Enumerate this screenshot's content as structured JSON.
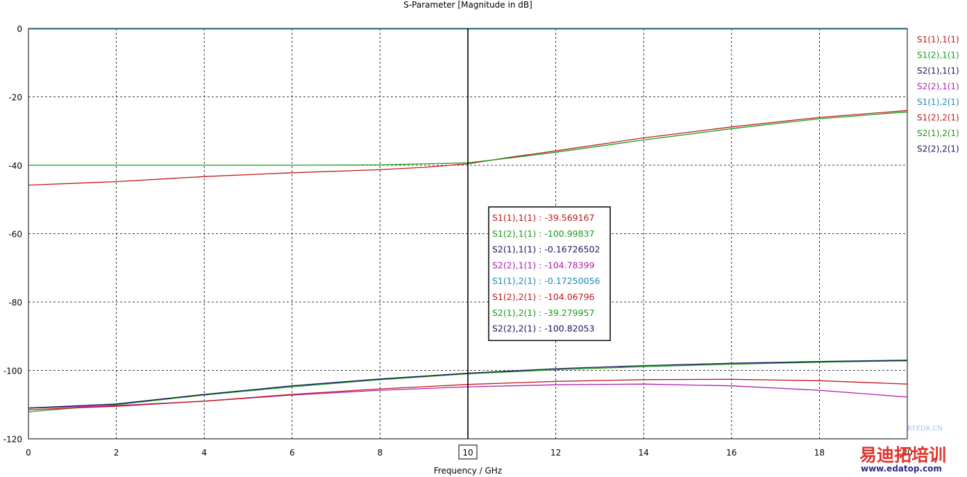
{
  "chart_data": {
    "type": "line",
    "title": "S-Parameter [Magnitude in dB]",
    "xlabel": "Frequency / GHz",
    "ylabel": "",
    "xlim": [
      0,
      20
    ],
    "ylim": [
      -120,
      0
    ],
    "x_ticks": [
      "0",
      "2",
      "4",
      "6",
      "8",
      "10",
      "12",
      "14",
      "16",
      "18",
      "20"
    ],
    "y_ticks": [
      "0",
      "-20",
      "-40",
      "-60",
      "-80",
      "-100",
      "-120"
    ],
    "grid": true,
    "legend_position": "right",
    "marker": {
      "x": 10,
      "label": "10",
      "readout": [
        {
          "name": "S1(1),1(1)",
          "value": "-39.569167",
          "color": "#c01818"
        },
        {
          "name": "S1(2),1(1)",
          "value": "-100.99837",
          "color": "#1a9a1a"
        },
        {
          "name": "S2(1),1(1)",
          "value": "-0.16726502",
          "color": "#161660"
        },
        {
          "name": "S2(2),1(1)",
          "value": "-104.78399",
          "color": "#b01cb0"
        },
        {
          "name": "S1(1),2(1)",
          "value": "-0.17250056",
          "color": "#1a8ab8"
        },
        {
          "name": "S1(2),2(1)",
          "value": "-104.06796",
          "color": "#c01818"
        },
        {
          "name": "S2(1),2(1)",
          "value": "-39.279957",
          "color": "#1a9a1a"
        },
        {
          "name": "S2(2),2(1)",
          "value": "-100.82053",
          "color": "#161660"
        }
      ]
    },
    "series": [
      {
        "name": "S1(1),1(1)",
        "color": "#c01818",
        "x": [
          0,
          2,
          4,
          6,
          8,
          9,
          10,
          11,
          12,
          14,
          16,
          18,
          20
        ],
        "y": [
          -45.8,
          -44.8,
          -43.3,
          -42.2,
          -41.3,
          -40.6,
          -39.57,
          -37.6,
          -35.8,
          -32.0,
          -28.8,
          -26.0,
          -24.0
        ]
      },
      {
        "name": "S1(2),1(1)",
        "color": "#1a9a1a",
        "x": [
          0,
          2,
          4,
          6,
          8,
          10,
          12,
          14,
          16,
          18,
          20
        ],
        "y": [
          -112.1,
          -110.0,
          -107.2,
          -104.8,
          -102.7,
          -101.0,
          -99.8,
          -98.9,
          -98.2,
          -97.6,
          -97.2
        ]
      },
      {
        "name": "S2(1),1(1)",
        "color": "#161660",
        "x": [
          0,
          2,
          4,
          6,
          8,
          10,
          12,
          14,
          16,
          18,
          20
        ],
        "y": [
          -0.17,
          -0.17,
          -0.17,
          -0.17,
          -0.17,
          -0.17,
          -0.17,
          -0.17,
          -0.17,
          -0.17,
          -0.17
        ]
      },
      {
        "name": "S2(2),1(1)",
        "color": "#b01cb0",
        "x": [
          0,
          2,
          4,
          6,
          8,
          10,
          12,
          14,
          16,
          18,
          20
        ],
        "y": [
          -111.0,
          -110.3,
          -109.0,
          -107.2,
          -105.8,
          -104.8,
          -104.2,
          -104.0,
          -104.5,
          -105.8,
          -107.8
        ]
      },
      {
        "name": "S1(1),2(1)",
        "color": "#1a8ab8",
        "x": [
          0,
          2,
          4,
          6,
          8,
          10,
          12,
          14,
          16,
          18,
          20
        ],
        "y": [
          -0.17,
          -0.17,
          -0.17,
          -0.17,
          -0.17,
          -0.17,
          -0.17,
          -0.17,
          -0.17,
          -0.17,
          -0.17
        ]
      },
      {
        "name": "S1(2),2(1)",
        "color": "#c01818",
        "x": [
          0,
          2,
          4,
          6,
          8,
          10,
          12,
          14,
          16,
          18,
          20
        ],
        "y": [
          -111.5,
          -110.5,
          -109.0,
          -107.0,
          -105.4,
          -104.1,
          -103.2,
          -102.7,
          -102.6,
          -103.0,
          -104.0
        ]
      },
      {
        "name": "S2(1),2(1)",
        "color": "#1a9a1a",
        "x": [
          0,
          2,
          4,
          6,
          8,
          10,
          11,
          12,
          14,
          16,
          18,
          20
        ],
        "y": [
          -40.0,
          -40.0,
          -40.0,
          -40.0,
          -39.9,
          -39.28,
          -37.8,
          -36.2,
          -32.6,
          -29.3,
          -26.4,
          -24.4
        ]
      },
      {
        "name": "S2(2),2(1)",
        "color": "#161660",
        "x": [
          0,
          2,
          4,
          6,
          8,
          10,
          12,
          14,
          16,
          18,
          20
        ],
        "y": [
          -111.0,
          -109.8,
          -107.0,
          -104.5,
          -102.5,
          -100.82,
          -99.5,
          -98.6,
          -97.9,
          -97.4,
          -97.0
        ]
      }
    ]
  },
  "watermark": {
    "site_small": "RFEDA.CN",
    "brand_cn": "易迪拓培训",
    "url": "www.edatop.com"
  }
}
